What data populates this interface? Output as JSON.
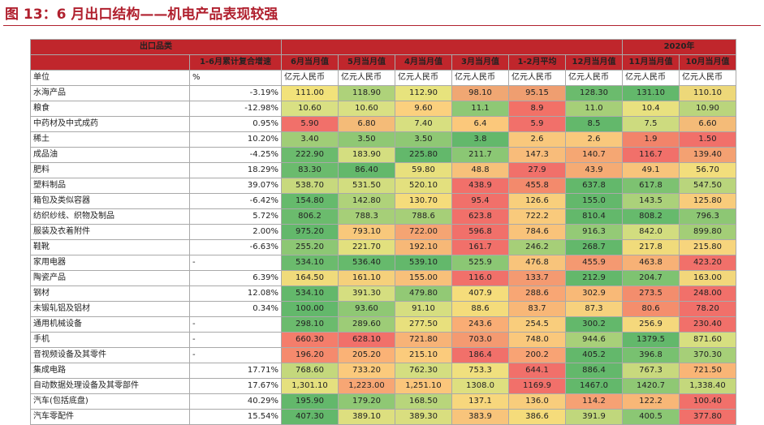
{
  "title": "图 13：6 月出口结构——机电产品表现较强",
  "header": {
    "product_col": "出口品类",
    "year_label": "2020年",
    "cagr_col": "1-6月累计复合增速",
    "columns": [
      "6月当月值",
      "5月当月值",
      "4月当月值",
      "3月当月值",
      "1-2月平均",
      "12月当月值",
      "11月当月值",
      "10月当月值"
    ]
  },
  "unit_row": {
    "label": "单位",
    "cagr": "%",
    "values": [
      "亿元人民币",
      "亿元人民币",
      "亿元人民币",
      "亿元人民币",
      "亿元人民币",
      "亿元人民币",
      "亿元人民币",
      "亿元人民币"
    ]
  },
  "rows": [
    {
      "name": "水海产品",
      "cagr": "-3.19%",
      "values": [
        "111.00",
        "118.90",
        "112.90",
        "98.10",
        "95.15",
        "128.30",
        "131.10",
        "110.10"
      ],
      "colors": [
        "#f2e27a",
        "#aed27a",
        "#e7e37d",
        "#f0a773",
        "#ef9e70",
        "#6bbb6d",
        "#63b86b",
        "#edd879"
      ]
    },
    {
      "name": "粮食",
      "cagr": "-12.98%",
      "values": [
        "10.60",
        "10.60",
        "9.60",
        "11.1",
        "8.9",
        "11.0",
        "10.4",
        "10.90"
      ],
      "colors": [
        "#d9e083",
        "#d9e083",
        "#fbd07e",
        "#8ec875",
        "#f27167",
        "#a6cf78",
        "#e8e17f",
        "#bad57c"
      ]
    },
    {
      "name": "中药材及中式成药",
      "cagr": "0.95%",
      "values": [
        "5.90",
        "6.80",
        "7.40",
        "6.4",
        "5.9",
        "8.5",
        "7.5",
        "6.60"
      ],
      "colors": [
        "#f1706a",
        "#f4bb78",
        "#d7df80",
        "#fbc87b",
        "#f1706a",
        "#63b86b",
        "#cddb7f",
        "#f4bb78"
      ]
    },
    {
      "name": "稀土",
      "cagr": "10.20%",
      "values": [
        "3.40",
        "3.50",
        "3.50",
        "3.8",
        "2.6",
        "2.6",
        "1.9",
        "1.50"
      ],
      "colors": [
        "#a0cd77",
        "#8fc874",
        "#8fc874",
        "#63b86b",
        "#f9c87c",
        "#f9c87c",
        "#f2846a",
        "#f1706a"
      ]
    },
    {
      "name": "成品油",
      "cagr": "-4.25%",
      "values": [
        "222.90",
        "183.90",
        "225.80",
        "211.7",
        "147.3",
        "140.7",
        "116.7",
        "139.40"
      ],
      "colors": [
        "#6bbb6d",
        "#d4de80",
        "#63b86b",
        "#8bc774",
        "#f8bc7a",
        "#f5a773",
        "#f1706a",
        "#f4a172"
      ]
    },
    {
      "name": "肥料",
      "cagr": "18.29%",
      "values": [
        "83.30",
        "86.40",
        "59.80",
        "48.8",
        "27.9",
        "43.9",
        "49.1",
        "56.70"
      ],
      "colors": [
        "#6bbb6d",
        "#63b86b",
        "#e8e07d",
        "#f7c17a",
        "#f1706a",
        "#f5ab74",
        "#f8c47b",
        "#f2de7c"
      ]
    },
    {
      "name": "塑料制品",
      "cagr": "39.07%",
      "values": [
        "538.70",
        "531.50",
        "520.10",
        "438.9",
        "455.8",
        "637.8",
        "617.8",
        "547.50"
      ],
      "colors": [
        "#c7d97d",
        "#d2dd7f",
        "#e3e07e",
        "#f1706a",
        "#f38a6c",
        "#63b86b",
        "#7dc271",
        "#b9d57c"
      ]
    },
    {
      "name": "箱包及类似容器",
      "cagr": "-6.42%",
      "values": [
        "154.80",
        "142.80",
        "130.70",
        "95.4",
        "126.6",
        "155.0",
        "143.5",
        "125.80"
      ],
      "colors": [
        "#66ba6c",
        "#afd27a",
        "#f5dc7b",
        "#f1706a",
        "#f8cf7c",
        "#63b86b",
        "#abd17a",
        "#f8cc7b"
      ]
    },
    {
      "name": "纺织纱线、织物及制品",
      "cagr": "5.72%",
      "values": [
        "806.2",
        "788.3",
        "788.6",
        "623.8",
        "722.2",
        "810.4",
        "808.2",
        "796.3"
      ],
      "colors": [
        "#6bbb6d",
        "#a6cf78",
        "#a6cf78",
        "#f1706a",
        "#f9ca7c",
        "#63b86b",
        "#66ba6c",
        "#8dc774"
      ]
    },
    {
      "name": "服装及衣着附件",
      "cagr": "2.00%",
      "values": [
        "975.20",
        "793.10",
        "722.00",
        "596.8",
        "784.6",
        "916.3",
        "842.0",
        "899.80"
      ],
      "colors": [
        "#63b86b",
        "#f8c87b",
        "#f5a473",
        "#f1706a",
        "#f9c37a",
        "#94ca76",
        "#d2dd7f",
        "#a3ce77"
      ]
    },
    {
      "name": "鞋靴",
      "cagr": "-6.63%",
      "values": [
        "255.20",
        "221.70",
        "192.10",
        "161.7",
        "246.2",
        "268.7",
        "217.8",
        "215.80"
      ],
      "colors": [
        "#8dc774",
        "#e2e07e",
        "#f7b877",
        "#f1706a",
        "#a6cf78",
        "#63b86b",
        "#f0db7b",
        "#f7d57d"
      ]
    },
    {
      "name": "家用电器",
      "cagr": "-",
      "values": [
        "534.10",
        "536.40",
        "539.10",
        "525.9",
        "476.8",
        "455.9",
        "463.8",
        "423.20"
      ],
      "colors": [
        "#6bbb6d",
        "#66ba6c",
        "#63b86b",
        "#8bc774",
        "#f8c47b",
        "#f49971",
        "#f7b176",
        "#f1706a"
      ]
    },
    {
      "name": "陶瓷产品",
      "cagr": "6.39%",
      "values": [
        "164.50",
        "161.10",
        "155.00",
        "116.0",
        "133.7",
        "212.9",
        "204.7",
        "163.00"
      ],
      "colors": [
        "#f0db7b",
        "#f5d07b",
        "#f8c07a",
        "#f1706a",
        "#f49a71",
        "#63b86b",
        "#7ec371",
        "#f2d77b"
      ]
    },
    {
      "name": "钢材",
      "cagr": "12.08%",
      "values": [
        "534.10",
        "391.30",
        "479.80",
        "407.9",
        "288.6",
        "302.9",
        "273.5",
        "248.00"
      ],
      "colors": [
        "#63b86b",
        "#d5de80",
        "#92c975",
        "#f5dd7b",
        "#f8a674",
        "#f8b977",
        "#f38d6d",
        "#f1706a"
      ]
    },
    {
      "name": "未锻轧铝及铝材",
      "cagr": "0.34%",
      "values": [
        "100.00",
        "93.60",
        "91.10",
        "88.6",
        "83.7",
        "87.3",
        "80.6",
        "78.20"
      ],
      "colors": [
        "#63b86b",
        "#8fc874",
        "#d6de80",
        "#f4dc7b",
        "#f8b777",
        "#f7d17d",
        "#f48e6d",
        "#f1706a"
      ]
    },
    {
      "name": "通用机械设备",
      "cagr": "-",
      "values": [
        "298.10",
        "289.60",
        "277.50",
        "243.6",
        "254.5",
        "300.2",
        "256.9",
        "230.40"
      ],
      "colors": [
        "#6bbb6d",
        "#9dcc77",
        "#e8e07d",
        "#f9ad75",
        "#f9cd7c",
        "#63b86b",
        "#f5d87c",
        "#f1706a"
      ]
    },
    {
      "name": "手机",
      "cagr": "-",
      "values": [
        "660.30",
        "628.10",
        "721.80",
        "703.0",
        "748.0",
        "944.6",
        "1379.5",
        "871.60"
      ],
      "colors": [
        "#f47d6b",
        "#f1706a",
        "#f7b377",
        "#f49a71",
        "#fac87c",
        "#a8d079",
        "#63b86b",
        "#d7df80"
      ]
    },
    {
      "name": "音视频设备及其零件",
      "cagr": "-",
      "values": [
        "196.20",
        "205.20",
        "215.10",
        "186.4",
        "200.2",
        "405.2",
        "396.8",
        "370.30"
      ],
      "colors": [
        "#f58a6d",
        "#fab276",
        "#fbcb7c",
        "#f1706a",
        "#f8a374",
        "#63b86b",
        "#78c170",
        "#a6cf78"
      ]
    },
    {
      "name": "集成电路",
      "cagr": "17.71%",
      "values": [
        "768.60",
        "733.20",
        "762.30",
        "753.3",
        "644.1",
        "886.4",
        "767.3",
        "721.50"
      ],
      "colors": [
        "#c4d87c",
        "#fbca7c",
        "#d4de80",
        "#f0e07e",
        "#f1706a",
        "#63b86b",
        "#c8d97d",
        "#f9b576"
      ]
    },
    {
      "name": "自动数据处理设备及其零部件",
      "cagr": "17.67%",
      "values": [
        "1,301.10",
        "1,223.00",
        "1,251.10",
        "1308.0",
        "1169.9",
        "1467.0",
        "1420.7",
        "1,338.40"
      ],
      "colors": [
        "#e5e07e",
        "#f7a674",
        "#fbc67b",
        "#dedf7f",
        "#f1706a",
        "#63b86b",
        "#8fc874",
        "#c4d87c"
      ]
    },
    {
      "name": "汽车(包括底盘)",
      "cagr": "40.29%",
      "values": [
        "195.90",
        "179.20",
        "168.50",
        "137.1",
        "136.0",
        "114.2",
        "122.2",
        "100.40"
      ],
      "colors": [
        "#63b86b",
        "#8fc874",
        "#b8d57b",
        "#f7d77d",
        "#f8cd7c",
        "#f6a174",
        "#f8b777",
        "#f1706a"
      ]
    },
    {
      "name": "汽车零配件",
      "cagr": "15.54%",
      "values": [
        "407.30",
        "389.10",
        "389.30",
        "383.9",
        "386.6",
        "391.9",
        "400.5",
        "377.80"
      ],
      "colors": [
        "#63b86b",
        "#dddf7f",
        "#d9de7f",
        "#f8c47b",
        "#f5dc7b",
        "#c0d77c",
        "#8bc774",
        "#f1706a"
      ]
    }
  ]
}
